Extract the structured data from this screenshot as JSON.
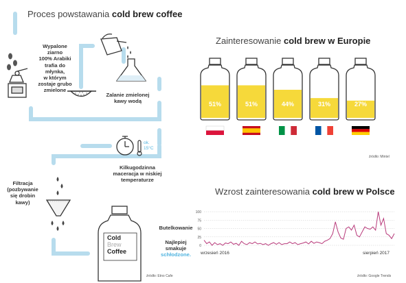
{
  "process": {
    "title_pre": "Proces powstawania ",
    "title_bold": "cold brew coffee",
    "step1": [
      "Wypalone",
      "ziarno",
      "100% Arabiki",
      "trafia do",
      "młynka,",
      "w którym",
      "zostaje grubo",
      "zmielone"
    ],
    "step2": [
      "Zalanie zmielonej",
      "kawy wodą"
    ],
    "temp": [
      "ok.",
      "15°C"
    ],
    "step3": [
      "Kilkugodzinna",
      "maceracja w niskiej",
      "temperaturze"
    ],
    "step4": [
      "Filtracja",
      "(pozbywanie",
      "się drobin",
      "kawy)"
    ],
    "step5": "Butelkowanie",
    "step6": [
      "Najlepiej",
      "smakuje"
    ],
    "step6_highlight": "schłodzone.",
    "bottle_label": [
      "Cold",
      "Brew",
      "Coffee"
    ],
    "source": "źródło: Etno Cafe"
  },
  "europe": {
    "title_pre": "Zainteresowanie ",
    "title_bold": "cold brew w Europie",
    "source": "źródło: Mintel"
  },
  "poland": {
    "title_pre": "Wzrost zainteresowania ",
    "title_bold": "cold brew w Polsce",
    "source": "źródło: Google Trends"
  },
  "colors": {
    "pipe": "#b7dced",
    "accent": "#4fb3df",
    "liquid": "#f6d93a",
    "line": "#b8397a"
  },
  "chart_data": [
    {
      "type": "bar",
      "categories": [
        "Polska",
        "Hiszpania",
        "Włochy",
        "Francja",
        "Niemcy"
      ],
      "values": [
        51,
        51,
        44,
        31,
        27
      ],
      "labels": [
        "51%",
        "51%",
        "44%",
        "31%",
        "27%"
      ],
      "ylim": [
        0,
        100
      ]
    },
    {
      "type": "line",
      "series": [
        {
          "values": [
            15,
            5,
            10,
            0,
            8,
            2,
            5,
            0,
            7,
            5,
            10,
            3,
            6,
            0,
            12,
            5,
            2,
            8,
            5,
            10,
            4,
            6,
            2,
            5,
            0,
            5,
            8,
            3,
            8,
            2,
            5,
            5,
            10,
            5,
            8,
            2,
            5,
            7,
            10,
            4,
            12,
            6,
            10,
            8,
            5,
            12,
            15,
            20,
            35,
            70,
            40,
            22,
            18,
            50,
            55,
            45,
            60,
            30,
            25,
            40,
            55,
            50,
            48,
            55,
            45,
            100,
            60,
            80,
            35,
            30,
            20,
            35
          ]
        }
      ],
      "x_start_label": "wrzesień 2016",
      "x_end_label": "sierpień 2017",
      "yticks": [
        0,
        25,
        50,
        75,
        100
      ],
      "ylim": [
        0,
        100
      ],
      "grid": true
    }
  ]
}
